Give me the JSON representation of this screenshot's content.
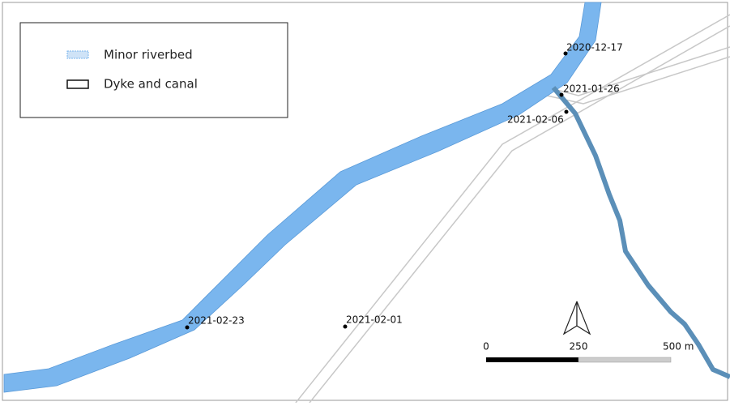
{
  "legend": {
    "items": [
      {
        "label": "Minor riverbed"
      },
      {
        "label": "Dyke and canal"
      }
    ]
  },
  "points": [
    {
      "label": "2020-12-17"
    },
    {
      "label": "2021-01-26"
    },
    {
      "label": "2021-02-06"
    },
    {
      "label": "2021-02-23"
    },
    {
      "label": "2021-02-01"
    }
  ],
  "scale_bar": {
    "labels": [
      "0",
      "250",
      "500 m"
    ]
  }
}
